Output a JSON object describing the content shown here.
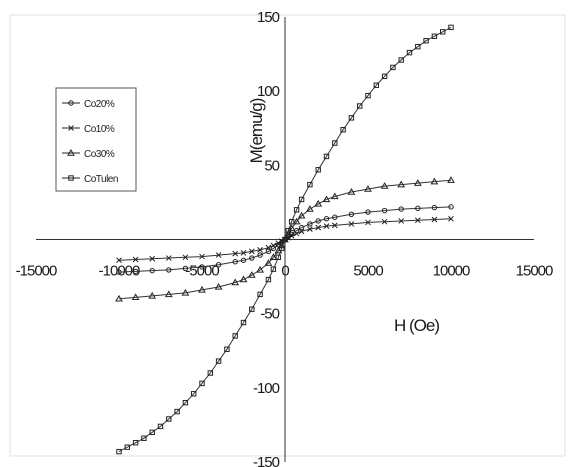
{
  "chart_data": {
    "type": "scatter",
    "xlabel": "H (Oe)",
    "ylabel": "M(emu/g)",
    "xlim": [
      -15000,
      15000
    ],
    "ylim": [
      -150,
      150
    ],
    "xticks": [
      "-15000",
      "-10000",
      "-5000",
      "0",
      "5000",
      "10000",
      "15000"
    ],
    "yticks": [
      "150",
      "100",
      "50",
      "",
      "-50",
      "-100",
      "-150"
    ],
    "legend_position": "upper-left",
    "grid": false,
    "series": [
      {
        "name": "Co20%",
        "marker": "circle",
        "x": [
          -10000,
          -9000,
          -8000,
          -7000,
          -6000,
          -5000,
          -4000,
          -3000,
          -2500,
          -2000,
          -1500,
          -1000,
          -700,
          -400,
          -200,
          0,
          200,
          400,
          700,
          1000,
          1500,
          2000,
          2500,
          3000,
          4000,
          5000,
          6000,
          7000,
          8000,
          9000,
          10000
        ],
        "y": [
          -22,
          -21.5,
          -21,
          -20.5,
          -19.5,
          -18.5,
          -17,
          -15,
          -14,
          -12.5,
          -10.5,
          -8,
          -6,
          -3.5,
          -2,
          0,
          2,
          3.5,
          6,
          8,
          10.5,
          12.5,
          14,
          15,
          17,
          18.5,
          19.5,
          20.5,
          21,
          21.5,
          22
        ]
      },
      {
        "name": "Co10%",
        "marker": "x",
        "x": [
          -10000,
          -9000,
          -8000,
          -7000,
          -6000,
          -5000,
          -4000,
          -3000,
          -2500,
          -2000,
          -1500,
          -1000,
          -700,
          -400,
          -200,
          0,
          200,
          400,
          700,
          1000,
          1500,
          2000,
          2500,
          3000,
          4000,
          5000,
          6000,
          7000,
          8000,
          9000,
          10000
        ],
        "y": [
          -14,
          -13.5,
          -13,
          -12.5,
          -12,
          -11.5,
          -10.5,
          -9.5,
          -9,
          -8,
          -7,
          -5.5,
          -4,
          -2.5,
          -1.2,
          0,
          1.2,
          2.5,
          4,
          5.5,
          7,
          8,
          9,
          9.5,
          10.5,
          11.5,
          12,
          12.5,
          13,
          13.5,
          14
        ]
      },
      {
        "name": "Co30%",
        "marker": "triangle",
        "x": [
          -10000,
          -9000,
          -8000,
          -7000,
          -6000,
          -5000,
          -4000,
          -3000,
          -2500,
          -2000,
          -1500,
          -1000,
          -700,
          -400,
          -200,
          0,
          200,
          400,
          700,
          1000,
          1500,
          2000,
          2500,
          3000,
          4000,
          5000,
          6000,
          7000,
          8000,
          9000,
          10000
        ],
        "y": [
          -40,
          -39,
          -38,
          -37,
          -36,
          -34,
          -32,
          -29,
          -27,
          -24,
          -20.5,
          -16,
          -12,
          -7.5,
          -4,
          0,
          4,
          7.5,
          12,
          16,
          20.5,
          24,
          27,
          29,
          32,
          34,
          36,
          37,
          38,
          39,
          40
        ]
      },
      {
        "name": "CoTulen",
        "marker": "square",
        "x": [
          -10000,
          -9500,
          -9000,
          -8500,
          -8000,
          -7500,
          -7000,
          -6500,
          -6000,
          -5500,
          -5000,
          -4500,
          -4000,
          -3500,
          -3000,
          -2500,
          -2000,
          -1500,
          -1000,
          -700,
          -400,
          -200,
          0,
          200,
          400,
          700,
          1000,
          1500,
          2000,
          2500,
          3000,
          3500,
          4000,
          4500,
          5000,
          5500,
          6000,
          6500,
          7000,
          7500,
          8000,
          8500,
          9000,
          9500,
          10000
        ],
        "y": [
          -143,
          -140,
          -137,
          -134,
          -130,
          -126,
          -121,
          -116,
          -110,
          -104,
          -97,
          -90,
          -82,
          -74,
          -65,
          -56,
          -47,
          -37,
          -27,
          -20,
          -12,
          -6,
          0,
          6,
          12,
          20,
          27,
          37,
          47,
          56,
          65,
          74,
          82,
          90,
          97,
          104,
          110,
          116,
          121,
          126,
          130,
          134,
          137,
          140,
          143
        ]
      }
    ]
  }
}
